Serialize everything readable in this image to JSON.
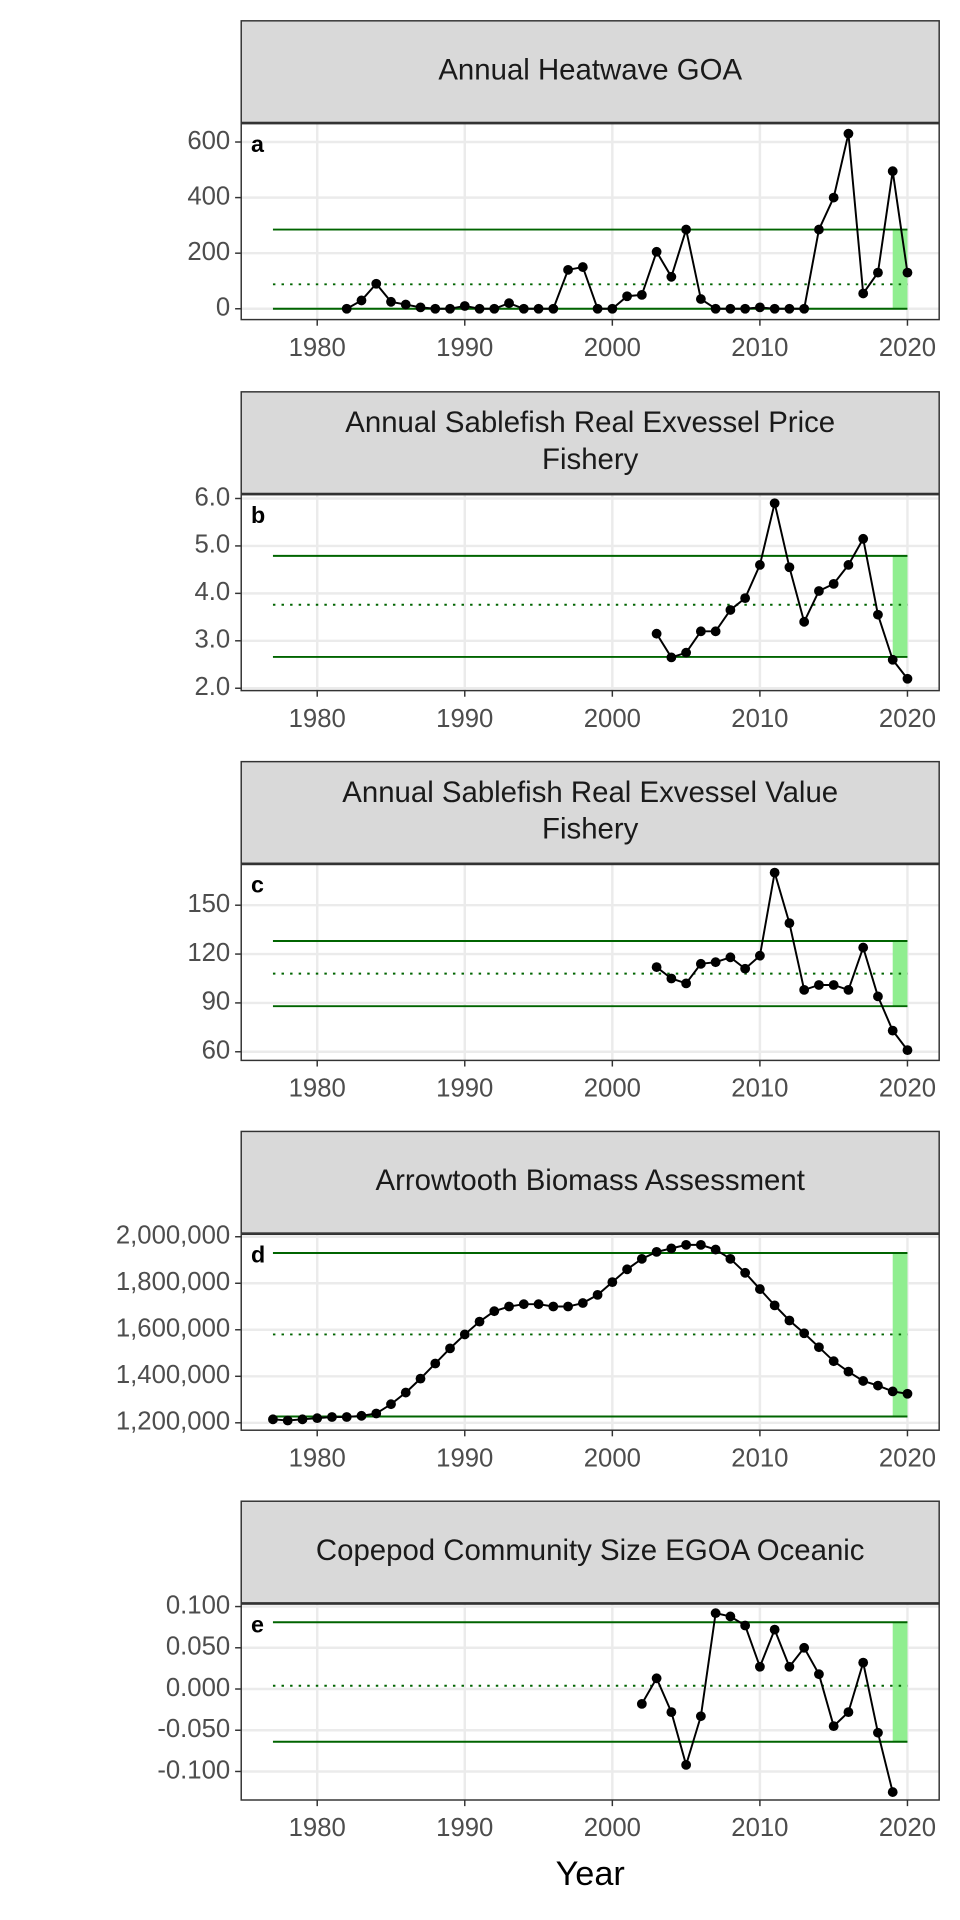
{
  "chart_data": [
    {
      "type": "line",
      "title": "Annual Heatwave GOA",
      "panel_label": "a",
      "color": "#000000",
      "ref_color": "#006400",
      "highlight_color": "#90ee90",
      "x": [
        1982,
        1983,
        1984,
        1985,
        1986,
        1987,
        1988,
        1989,
        1990,
        1991,
        1992,
        1993,
        1994,
        1995,
        1996,
        1997,
        1998,
        1999,
        2000,
        2001,
        2002,
        2003,
        2004,
        2005,
        2006,
        2007,
        2008,
        2009,
        2010,
        2011,
        2012,
        2013,
        2014,
        2015,
        2016,
        2017,
        2018,
        2019,
        2020
      ],
      "values": [
        0,
        30,
        90,
        25,
        15,
        5,
        0,
        0,
        10,
        0,
        0,
        20,
        0,
        0,
        0,
        140,
        150,
        0,
        0,
        45,
        50,
        205,
        115,
        285,
        35,
        0,
        0,
        0,
        5,
        0,
        0,
        0,
        285,
        400,
        630,
        55,
        130,
        495,
        130
      ],
      "upper": 285,
      "mean": 88,
      "lower": 0,
      "ref_x": [
        1977,
        2020
      ],
      "highlight_x": [
        2019,
        2020
      ],
      "xlim": [
        1974.85,
        2022.15
      ],
      "xticks": [
        1980,
        1990,
        2000,
        2010,
        2020
      ],
      "ylim": [
        -39,
        666
      ],
      "yticks": [
        0,
        200,
        400,
        600
      ],
      "grid": true
    },
    {
      "type": "line",
      "title": [
        "Annual Sablefish Real Exvessel Price",
        "Fishery"
      ],
      "panel_label": "b",
      "color": "#000000",
      "ref_color": "#006400",
      "highlight_color": "#90ee90",
      "x": [
        2003,
        2004,
        2005,
        2006,
        2007,
        2008,
        2009,
        2010,
        2011,
        2012,
        2013,
        2014,
        2015,
        2016,
        2017,
        2018,
        2019,
        2020
      ],
      "values": [
        3.15,
        2.65,
        2.75,
        3.2,
        3.2,
        3.65,
        3.9,
        4.6,
        5.9,
        4.55,
        3.4,
        4.05,
        4.2,
        4.6,
        5.15,
        3.55,
        2.6,
        2.2
      ],
      "upper": 4.79,
      "mean": 3.76,
      "lower": 2.66,
      "ref_x": [
        1977,
        2020
      ],
      "highlight_x": [
        2019,
        2020
      ],
      "xlim": [
        1974.85,
        2022.15
      ],
      "xticks": [
        1980,
        1990,
        2000,
        2010,
        2020
      ],
      "ylim": [
        1.95,
        6.08
      ],
      "yticks": [
        {
          "value": 2,
          "label": "2.0"
        },
        {
          "value": 3,
          "label": "3.0"
        },
        {
          "value": 4,
          "label": "4.0"
        },
        {
          "value": 5,
          "label": "5.0"
        },
        {
          "value": 6,
          "label": "6.0"
        }
      ],
      "grid": true
    },
    {
      "type": "line",
      "title": [
        "Annual Sablefish Real Exvessel Value",
        "Fishery"
      ],
      "panel_label": "c",
      "color": "#000000",
      "ref_color": "#006400",
      "highlight_color": "#90ee90",
      "x": [
        2003,
        2004,
        2005,
        2006,
        2007,
        2008,
        2009,
        2010,
        2011,
        2012,
        2013,
        2014,
        2015,
        2016,
        2017,
        2018,
        2019,
        2020
      ],
      "values": [
        112,
        105,
        102,
        114,
        115,
        118,
        111,
        119,
        170,
        139,
        98,
        101,
        101,
        98,
        124,
        94,
        73,
        61
      ],
      "upper": 128,
      "mean": 108,
      "lower": 88,
      "ref_x": [
        1977,
        2020
      ],
      "highlight_x": [
        2019,
        2020
      ],
      "xlim": [
        1974.85,
        2022.15
      ],
      "xticks": [
        1980,
        1990,
        2000,
        2010,
        2020
      ],
      "ylim": [
        54.7,
        175
      ],
      "yticks": [
        60,
        90,
        120,
        150
      ],
      "grid": true
    },
    {
      "type": "line",
      "title": "Arrowtooth Biomass Assessment",
      "panel_label": "d",
      "color": "#000000",
      "ref_color": "#006400",
      "highlight_color": "#90ee90",
      "x": [
        1977,
        1978,
        1979,
        1980,
        1981,
        1982,
        1983,
        1984,
        1985,
        1986,
        1987,
        1988,
        1989,
        1990,
        1991,
        1992,
        1993,
        1994,
        1995,
        1996,
        1997,
        1998,
        1999,
        2000,
        2001,
        2002,
        2003,
        2004,
        2005,
        2006,
        2007,
        2008,
        2009,
        2010,
        2011,
        2012,
        2013,
        2014,
        2015,
        2016,
        2017,
        2018,
        2019,
        2020
      ],
      "values": [
        1215000,
        1210000,
        1215000,
        1220000,
        1225000,
        1225000,
        1230000,
        1240000,
        1280000,
        1330000,
        1390000,
        1455000,
        1520000,
        1580000,
        1635000,
        1680000,
        1700000,
        1710000,
        1710000,
        1700000,
        1700000,
        1715000,
        1750000,
        1805000,
        1860000,
        1905000,
        1935000,
        1950000,
        1965000,
        1965000,
        1945000,
        1905000,
        1845000,
        1775000,
        1705000,
        1640000,
        1585000,
        1525000,
        1465000,
        1420000,
        1380000,
        1360000,
        1335000,
        1325000
      ],
      "upper": 1930000,
      "mean": 1580000,
      "lower": 1227000,
      "ref_x": [
        1977,
        2020
      ],
      "highlight_x": [
        2019,
        2020
      ],
      "xlim": [
        1974.85,
        2022.15
      ],
      "xticks": [
        1980,
        1990,
        2000,
        2010,
        2020
      ],
      "ylim": [
        1168200,
        2010600
      ],
      "yticks": [
        {
          "value": 1200000,
          "label": "1,200,000"
        },
        {
          "value": 1400000,
          "label": "1,400,000"
        },
        {
          "value": 1600000,
          "label": "1,600,000"
        },
        {
          "value": 1800000,
          "label": "1,800,000"
        },
        {
          "value": 2000000,
          "label": "2,000,000"
        }
      ],
      "grid": true
    },
    {
      "type": "line",
      "title": "Copepod Community Size EGOA Oceanic",
      "panel_label": "e",
      "color": "#000000",
      "ref_color": "#006400",
      "highlight_color": "#90ee90",
      "x": [
        2002,
        2003,
        2004,
        2005,
        2006,
        2007,
        2008,
        2009,
        2010,
        2011,
        2012,
        2013,
        2014,
        2015,
        2016,
        2017,
        2018,
        2019
      ],
      "values": [
        -0.018,
        0.013,
        -0.028,
        -0.092,
        -0.033,
        0.092,
        0.088,
        0.077,
        0.027,
        0.072,
        0.027,
        0.05,
        0.018,
        -0.045,
        -0.028,
        0.032,
        -0.053,
        -0.125
      ],
      "upper": 0.081,
      "mean": 0.004,
      "lower": -0.064,
      "ref_x": [
        1977,
        2020
      ],
      "highlight_x": [
        2019,
        2020
      ],
      "xlim": [
        1974.85,
        2022.15
      ],
      "xticks": [
        1980,
        1990,
        2000,
        2010,
        2020
      ],
      "ylim": [
        -0.1346,
        0.103
      ],
      "yticks": [
        {
          "value": -0.1,
          "label": "-0.100"
        },
        {
          "value": -0.05,
          "label": "-0.050"
        },
        {
          "value": 0,
          "label": "0.000"
        },
        {
          "value": 0.05,
          "label": "0.050"
        },
        {
          "value": 0.1,
          "label": "0.100"
        }
      ],
      "grid": true,
      "x_label": "Year"
    }
  ]
}
